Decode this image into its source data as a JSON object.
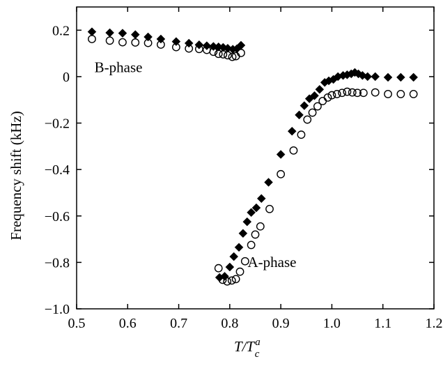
{
  "chart_data": {
    "type": "scatter",
    "xlabel": {
      "main": "T/T",
      "sub": "c",
      "sup": "a"
    },
    "ylabel": "Frequency shift  (kHz)",
    "xlim": [
      0.5,
      1.2
    ],
    "ylim": [
      -1.0,
      0.3
    ],
    "xticks": [
      0.5,
      0.6,
      0.7,
      0.8,
      0.9,
      1.0,
      1.1,
      1.2
    ],
    "xtick_labels": [
      "0.5",
      "0.6",
      "0.7",
      "0.8",
      "0.9",
      "1.0",
      "1.1",
      "1.2"
    ],
    "yticks": [
      0.2,
      0,
      -0.2,
      -0.4,
      -0.6,
      -0.8,
      -1.0
    ],
    "ytick_labels": [
      "0.2",
      "0",
      "−0.2",
      "−0.4",
      "−0.6",
      "−0.8",
      "−1.0"
    ],
    "grid": false,
    "annotations": [
      {
        "text": "B-phase",
        "x": 0.535,
        "y": 0.02
      },
      {
        "text": "A-phase",
        "x": 0.835,
        "y": -0.82
      }
    ],
    "series": [
      {
        "marker": "filled-diamond",
        "color": "#000000",
        "points": [
          [
            0.53,
            0.193
          ],
          [
            0.565,
            0.189
          ],
          [
            0.59,
            0.187
          ],
          [
            0.615,
            0.181
          ],
          [
            0.64,
            0.171
          ],
          [
            0.665,
            0.162
          ],
          [
            0.695,
            0.151
          ],
          [
            0.72,
            0.144
          ],
          [
            0.74,
            0.137
          ],
          [
            0.755,
            0.133
          ],
          [
            0.768,
            0.13
          ],
          [
            0.778,
            0.128
          ],
          [
            0.787,
            0.126
          ],
          [
            0.796,
            0.122
          ],
          [
            0.806,
            0.118
          ],
          [
            0.814,
            0.12
          ],
          [
            0.822,
            0.135
          ],
          [
            0.78,
            -0.865
          ],
          [
            0.79,
            -0.86
          ],
          [
            0.8,
            -0.82
          ],
          [
            0.808,
            -0.775
          ],
          [
            0.818,
            -0.735
          ],
          [
            0.826,
            -0.675
          ],
          [
            0.834,
            -0.625
          ],
          [
            0.842,
            -0.585
          ],
          [
            0.852,
            -0.565
          ],
          [
            0.862,
            -0.525
          ],
          [
            0.876,
            -0.455
          ],
          [
            0.9,
            -0.335
          ],
          [
            0.922,
            -0.235
          ],
          [
            0.936,
            -0.165
          ],
          [
            0.946,
            -0.125
          ],
          [
            0.956,
            -0.095
          ],
          [
            0.966,
            -0.082
          ],
          [
            0.976,
            -0.055
          ],
          [
            0.986,
            -0.025
          ],
          [
            0.994,
            -0.018
          ],
          [
            1.003,
            -0.012
          ],
          [
            1.012,
            0.0
          ],
          [
            1.022,
            0.005
          ],
          [
            1.03,
            0.008
          ],
          [
            1.038,
            0.012
          ],
          [
            1.045,
            0.018
          ],
          [
            1.052,
            0.012
          ],
          [
            1.06,
            0.005
          ],
          [
            1.07,
            0.0
          ],
          [
            1.085,
            0.0
          ],
          [
            1.11,
            -0.003
          ],
          [
            1.135,
            -0.003
          ],
          [
            1.16,
            -0.003
          ]
        ]
      },
      {
        "marker": "open-circle",
        "color": "#000000",
        "points": [
          [
            0.53,
            0.162
          ],
          [
            0.565,
            0.155
          ],
          [
            0.59,
            0.148
          ],
          [
            0.615,
            0.147
          ],
          [
            0.64,
            0.145
          ],
          [
            0.665,
            0.138
          ],
          [
            0.695,
            0.127
          ],
          [
            0.72,
            0.121
          ],
          [
            0.74,
            0.119
          ],
          [
            0.755,
            0.115
          ],
          [
            0.768,
            0.107
          ],
          [
            0.778,
            0.098
          ],
          [
            0.787,
            0.096
          ],
          [
            0.796,
            0.092
          ],
          [
            0.805,
            0.085
          ],
          [
            0.812,
            0.088
          ],
          [
            0.822,
            0.102
          ],
          [
            0.778,
            -0.825
          ],
          [
            0.786,
            -0.875
          ],
          [
            0.795,
            -0.882
          ],
          [
            0.804,
            -0.878
          ],
          [
            0.812,
            -0.872
          ],
          [
            0.82,
            -0.84
          ],
          [
            0.83,
            -0.795
          ],
          [
            0.842,
            -0.725
          ],
          [
            0.85,
            -0.68
          ],
          [
            0.86,
            -0.645
          ],
          [
            0.878,
            -0.57
          ],
          [
            0.9,
            -0.42
          ],
          [
            0.925,
            -0.318
          ],
          [
            0.94,
            -0.25
          ],
          [
            0.952,
            -0.185
          ],
          [
            0.962,
            -0.155
          ],
          [
            0.972,
            -0.128
          ],
          [
            0.982,
            -0.105
          ],
          [
            0.992,
            -0.09
          ],
          [
            1.0,
            -0.08
          ],
          [
            1.01,
            -0.075
          ],
          [
            1.02,
            -0.07
          ],
          [
            1.03,
            -0.065
          ],
          [
            1.04,
            -0.068
          ],
          [
            1.05,
            -0.07
          ],
          [
            1.062,
            -0.07
          ],
          [
            1.085,
            -0.068
          ],
          [
            1.11,
            -0.075
          ],
          [
            1.135,
            -0.075
          ],
          [
            1.16,
            -0.075
          ]
        ]
      }
    ]
  }
}
